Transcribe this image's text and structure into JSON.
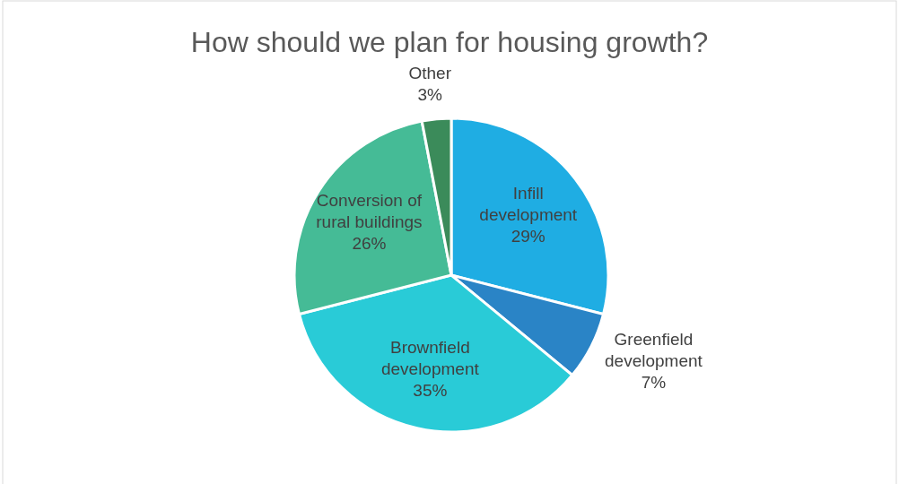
{
  "chart_data": {
    "type": "pie",
    "title": "How should we plan for housing growth?",
    "categories": [
      "Infill development",
      "Greenfield development",
      "Brownfield development",
      "Conversion of rural buildings",
      "Other"
    ],
    "values": [
      29,
      7,
      35,
      26,
      3
    ],
    "value_labels": [
      "29%",
      "7%",
      "35%",
      "26%",
      "3%"
    ],
    "colors": [
      "#1fade3",
      "#2a84c6",
      "#29cbd7",
      "#45bb96",
      "#3b8b5a"
    ]
  }
}
